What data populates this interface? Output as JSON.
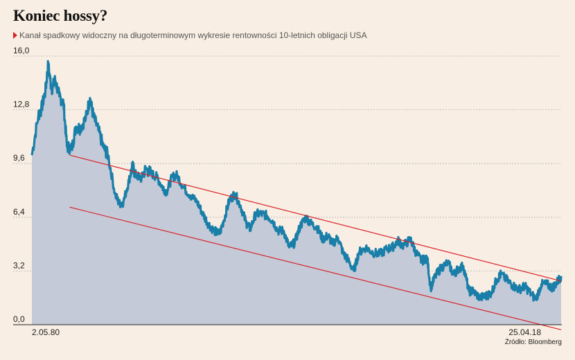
{
  "title": "Koniec hossy?",
  "subtitle": "Kanał spadkowy widoczny na długoterminowym wykresie rentowności 10-letnich obligacji USA",
  "source": "Źródło: Bloomberg",
  "colors": {
    "background": "#f8eee3",
    "line": "#1a7fa8",
    "area": "#c5cad8",
    "channel": "#d9232a",
    "grid": "#b5b5b5"
  },
  "chart_data": {
    "type": "area",
    "title": "Koniec hossy?",
    "xlabel": "",
    "ylabel": "",
    "x_range": [
      "1980-05-02",
      "2018-04-25"
    ],
    "x_tick_labels": [
      "2.05.80",
      "25.04.18"
    ],
    "ylim": [
      0,
      16
    ],
    "y_ticks": [
      "16,0",
      "12,8",
      "9,6",
      "6,4",
      "3,2",
      "0,0"
    ],
    "grid": "horizontal dashed",
    "series": [
      {
        "name": "",
        "x": [
          1980.33,
          1980.8,
          1981.0,
          1981.3,
          1981.5,
          1981.75,
          1982.0,
          1982.3,
          1982.6,
          1982.85,
          1983.2,
          1983.5,
          1983.8,
          1984.2,
          1984.5,
          1984.75,
          1985.1,
          1985.5,
          1985.8,
          1986.3,
          1986.6,
          1986.9,
          1987.3,
          1987.55,
          1987.8,
          1988.2,
          1988.5,
          1988.9,
          1989.3,
          1989.7,
          1990.0,
          1990.4,
          1990.75,
          1991.2,
          1991.7,
          1992.2,
          1992.6,
          1993.0,
          1993.4,
          1993.8,
          1994.1,
          1994.5,
          1994.9,
          1995.3,
          1995.7,
          1996.0,
          1996.4,
          1996.8,
          1997.2,
          1997.6,
          1998.0,
          1998.4,
          1998.8,
          1999.2,
          1999.6,
          2000.0,
          2000.4,
          2000.8,
          2001.2,
          2001.6,
          2001.9,
          2002.3,
          2002.7,
          2003.0,
          2003.45,
          2003.8,
          2004.3,
          2004.8,
          2005.3,
          2005.8,
          2006.2,
          2006.6,
          2007.0,
          2007.5,
          2007.9,
          2008.3,
          2008.7,
          2008.95,
          2009.3,
          2009.7,
          2010.2,
          2010.6,
          2010.9,
          2011.3,
          2011.7,
          2012.0,
          2012.5,
          2012.9,
          2013.3,
          2013.7,
          2014.0,
          2014.5,
          2014.9,
          2015.3,
          2015.7,
          2016.0,
          2016.5,
          2016.9,
          2017.3,
          2017.7,
          2018.0,
          2018.32
        ],
        "values": [
          10.1,
          12.5,
          12.8,
          13.9,
          15.5,
          14.0,
          14.6,
          13.6,
          13.2,
          10.6,
          10.5,
          11.8,
          11.7,
          12.3,
          13.5,
          12.4,
          11.6,
          10.5,
          10.1,
          7.8,
          7.2,
          7.3,
          8.6,
          9.4,
          8.9,
          8.7,
          9.3,
          9.0,
          8.8,
          8.2,
          7.9,
          8.8,
          8.9,
          8.2,
          7.7,
          7.3,
          6.6,
          6.0,
          5.6,
          5.4,
          6.2,
          7.4,
          7.8,
          7.1,
          6.1,
          5.7,
          6.6,
          6.6,
          6.5,
          6.2,
          5.6,
          5.6,
          4.6,
          4.9,
          5.9,
          6.4,
          6.0,
          5.8,
          5.1,
          5.3,
          4.8,
          5.2,
          4.2,
          3.9,
          3.2,
          4.3,
          4.6,
          4.3,
          4.2,
          4.5,
          4.6,
          5.0,
          4.7,
          5.1,
          4.3,
          3.8,
          4.0,
          2.2,
          2.9,
          3.4,
          3.7,
          3.0,
          3.3,
          3.5,
          2.0,
          2.0,
          1.6,
          1.7,
          1.9,
          2.7,
          3.0,
          2.6,
          2.3,
          2.1,
          2.3,
          2.0,
          1.5,
          2.4,
          2.4,
          2.2,
          2.5,
          2.9
        ]
      }
    ],
    "channel": [
      {
        "name": "",
        "x": [
          1983.05,
          2018.32
        ],
        "values": [
          10.1,
          2.6
        ]
      },
      {
        "name": "",
        "x": [
          1983.05,
          2018.32
        ],
        "values": [
          7.0,
          -0.3
        ]
      }
    ]
  }
}
